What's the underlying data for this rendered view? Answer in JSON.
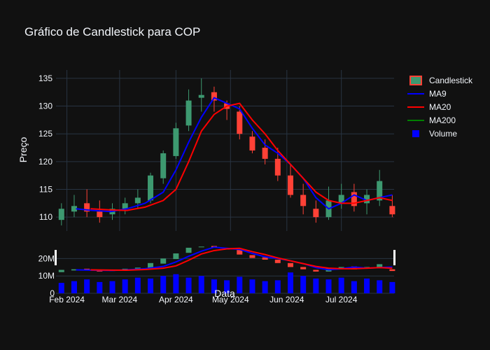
{
  "chart_data": {
    "type": "candlestick",
    "title": "Gráfico de Candlestick para COP",
    "xlabel": "Data",
    "ylabel": "Preço",
    "x_ticks": [
      "Feb 2024",
      "Mar 2024",
      "Apr 2024",
      "May 2024",
      "Jun 2024",
      "Jul 2024"
    ],
    "x_range": [
      "2024-01-26",
      "2024-07-30"
    ],
    "price_axis": {
      "ylim": [
        107.5,
        136.5
      ],
      "ticks": [
        "110",
        "115",
        "120",
        "125",
        "130",
        "135"
      ]
    },
    "volume_axis": {
      "ylim": [
        0,
        25000000
      ],
      "ticks": [
        "0",
        "10M",
        "20M"
      ]
    },
    "grid": true,
    "legend_position": "top-right",
    "legend": [
      "Candlestick",
      "MA9",
      "MA20",
      "MA200",
      "Volume"
    ],
    "series": [
      {
        "name": "MA9",
        "color": "#0000ff",
        "x": [
          "2024-02-06",
          "2024-02-15",
          "2024-02-25",
          "2024-03-05",
          "2024-03-15",
          "2024-03-25",
          "2024-04-01",
          "2024-04-08",
          "2024-04-15",
          "2024-04-22",
          "2024-04-29",
          "2024-05-06",
          "2024-05-13",
          "2024-05-20",
          "2024-05-27",
          "2024-06-03",
          "2024-06-10",
          "2024-06-17",
          "2024-06-24",
          "2024-07-01",
          "2024-07-08",
          "2024-07-15",
          "2024-07-22",
          "2024-07-29"
        ],
        "values": [
          111.5,
          111.2,
          111.0,
          111.5,
          112.5,
          114.5,
          118.5,
          123.5,
          128.0,
          131.5,
          130.5,
          129.5,
          126.0,
          123.0,
          121.5,
          119.5,
          117.0,
          113.5,
          111.5,
          112.5,
          114.0,
          113.0,
          113.5,
          114.0
        ]
      },
      {
        "name": "MA20",
        "color": "#ff0000",
        "x": [
          "2024-02-14",
          "2024-02-25",
          "2024-03-05",
          "2024-03-15",
          "2024-03-25",
          "2024-04-01",
          "2024-04-08",
          "2024-04-15",
          "2024-04-22",
          "2024-04-29",
          "2024-05-06",
          "2024-05-13",
          "2024-05-20",
          "2024-05-27",
          "2024-06-03",
          "2024-06-10",
          "2024-06-17",
          "2024-06-24",
          "2024-07-01",
          "2024-07-08",
          "2024-07-15",
          "2024-07-22",
          "2024-07-29"
        ],
        "values": [
          111.5,
          111.3,
          111.2,
          111.8,
          113.0,
          115.0,
          120.0,
          125.5,
          128.5,
          130.0,
          130.5,
          127.5,
          125.0,
          122.0,
          119.5,
          117.0,
          114.5,
          113.0,
          112.5,
          112.5,
          113.0,
          113.5,
          113.0
        ]
      },
      {
        "name": "MA200",
        "color": "#008000",
        "x": [],
        "values": []
      },
      {
        "name": "Candlestick",
        "increasing_color": "#3d9970",
        "decreasing_color": "#ff4136",
        "x": [
          "2024-01-29",
          "2024-02-05",
          "2024-02-12",
          "2024-02-19",
          "2024-02-26",
          "2024-03-04",
          "2024-03-11",
          "2024-03-18",
          "2024-03-25",
          "2024-04-01",
          "2024-04-08",
          "2024-04-15",
          "2024-04-22",
          "2024-04-29",
          "2024-05-06",
          "2024-05-13",
          "2024-05-20",
          "2024-05-27",
          "2024-06-03",
          "2024-06-10",
          "2024-06-17",
          "2024-06-24",
          "2024-07-01",
          "2024-07-08",
          "2024-07-15",
          "2024-07-22",
          "2024-07-29"
        ],
        "open": [
          109.5,
          111.0,
          112.5,
          111.0,
          110.5,
          111.5,
          112.5,
          113.0,
          117.0,
          121.0,
          126.5,
          131.5,
          132.5,
          130.5,
          129.0,
          124.5,
          122.5,
          120.5,
          117.5,
          114.0,
          111.5,
          110.0,
          112.5,
          114.5,
          112.5,
          113.0,
          112.0
        ],
        "high": [
          112.5,
          114.0,
          115.0,
          113.0,
          112.5,
          113.5,
          115.0,
          118.0,
          122.0,
          127.0,
          133.0,
          135.0,
          133.5,
          131.0,
          130.0,
          125.5,
          124.0,
          122.5,
          119.5,
          116.0,
          113.0,
          115.5,
          116.0,
          116.0,
          115.0,
          118.5,
          114.0
        ],
        "low": [
          108.5,
          110.0,
          110.0,
          109.0,
          109.5,
          110.5,
          111.5,
          112.5,
          116.0,
          120.5,
          125.5,
          129.0,
          129.0,
          127.5,
          124.0,
          121.5,
          119.5,
          116.5,
          113.5,
          110.5,
          109.0,
          109.5,
          111.5,
          111.0,
          110.5,
          112.0,
          110.0
        ],
        "close": [
          111.5,
          112.0,
          111.0,
          110.0,
          111.5,
          112.5,
          113.5,
          117.5,
          121.5,
          126.0,
          131.0,
          132.0,
          131.0,
          129.5,
          125.0,
          122.0,
          120.5,
          117.5,
          114.0,
          112.0,
          110.0,
          113.0,
          114.0,
          112.0,
          114.0,
          116.5,
          110.5
        ]
      },
      {
        "name": "Volume",
        "color": "#0000ff",
        "x": [
          "2024-01-29",
          "2024-02-05",
          "2024-02-12",
          "2024-02-19",
          "2024-02-26",
          "2024-03-04",
          "2024-03-11",
          "2024-03-18",
          "2024-03-25",
          "2024-04-01",
          "2024-04-08",
          "2024-04-15",
          "2024-04-22",
          "2024-04-29",
          "2024-05-06",
          "2024-05-13",
          "2024-05-20",
          "2024-05-27",
          "2024-06-03",
          "2024-06-10",
          "2024-06-17",
          "2024-06-24",
          "2024-07-01",
          "2024-07-08",
          "2024-07-15",
          "2024-07-22",
          "2024-07-29"
        ],
        "values": [
          6000000,
          7000000,
          8000000,
          6500000,
          7000000,
          8000000,
          9000000,
          8500000,
          10000000,
          11000000,
          9000000,
          10000000,
          8000000,
          7500000,
          9500000,
          8000000,
          7000000,
          7500000,
          12000000,
          10000000,
          8500000,
          8000000,
          9000000,
          7000000,
          8500000,
          7500000,
          6500000
        ]
      }
    ]
  }
}
